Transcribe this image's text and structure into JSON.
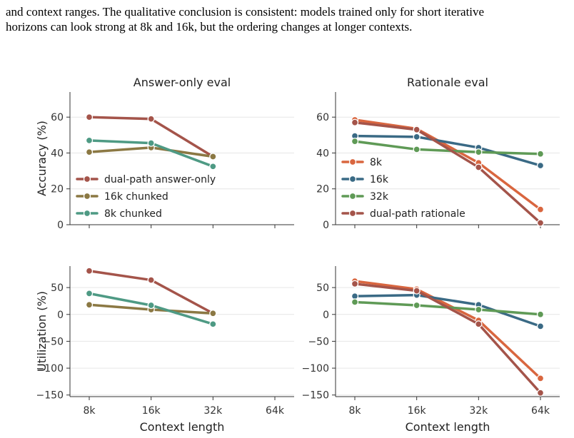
{
  "text": {
    "line1": "and context ranges. The qualitative conclusion is consistent: models trained only for short iterative",
    "line2": "horizons can look strong at 8k and 16k, but the ordering changes at longer contexts."
  },
  "colors": {
    "8k": "#d9663f",
    "16k": "#3a6a85",
    "32k": "#5f9a56",
    "dual-path rationale": "#a4544a",
    "dual-path answer-only": "#a4544a",
    "16k chunked": "#8b7843",
    "8k chunked": "#4e9a84"
  },
  "chart_data": [
    {
      "type": "line",
      "title": "Answer-only eval",
      "xlabel": "",
      "ylabel": "Accuracy (%)",
      "categories": [
        "8k",
        "16k",
        "32k",
        "64k"
      ],
      "ylim": [
        0,
        74
      ],
      "yticks": [
        0,
        20,
        40,
        60
      ],
      "grid": true,
      "legend": "lower-left",
      "series": [
        {
          "name": "dual-path answer-only",
          "values": [
            60,
            59,
            38,
            null
          ]
        },
        {
          "name": "16k chunked",
          "values": [
            40.5,
            43,
            38,
            null
          ]
        },
        {
          "name": "8k chunked",
          "values": [
            47,
            45.5,
            32.5,
            null
          ]
        }
      ]
    },
    {
      "type": "line",
      "title": "Rationale eval",
      "xlabel": "",
      "ylabel": "",
      "categories": [
        "8k",
        "16k",
        "32k",
        "64k"
      ],
      "ylim": [
        0,
        74
      ],
      "yticks": [
        0,
        20,
        40,
        60
      ],
      "grid": true,
      "legend": "lower-left",
      "series": [
        {
          "name": "8k",
          "values": [
            58.5,
            53.5,
            34.5,
            8.5
          ]
        },
        {
          "name": "16k",
          "values": [
            49.5,
            49,
            43,
            33
          ]
        },
        {
          "name": "32k",
          "values": [
            46.5,
            42,
            40.5,
            39.5
          ]
        },
        {
          "name": "dual-path rationale",
          "values": [
            57,
            53,
            32,
            1
          ]
        }
      ]
    },
    {
      "type": "line",
      "title": "",
      "xlabel": "Context length",
      "ylabel": "Utilization (%)",
      "categories": [
        "8k",
        "16k",
        "32k",
        "64k"
      ],
      "ylim": [
        -153,
        90
      ],
      "yticks": [
        -150,
        -100,
        -50,
        0,
        50
      ],
      "grid": true,
      "series": [
        {
          "name": "dual-path answer-only",
          "values": [
            81,
            64,
            2,
            null
          ]
        },
        {
          "name": "16k chunked",
          "values": [
            18,
            9,
            2,
            null
          ]
        },
        {
          "name": "8k chunked",
          "values": [
            39,
            17,
            -18,
            null
          ]
        }
      ]
    },
    {
      "type": "line",
      "title": "",
      "xlabel": "Context length",
      "ylabel": "",
      "categories": [
        "8k",
        "16k",
        "32k",
        "64k"
      ],
      "ylim": [
        -153,
        90
      ],
      "yticks": [
        -150,
        -100,
        -50,
        0,
        50
      ],
      "grid": true,
      "series": [
        {
          "name": "8k",
          "values": [
            62,
            47,
            -11,
            -119
          ]
        },
        {
          "name": "16k",
          "values": [
            34,
            36,
            18,
            -22
          ]
        },
        {
          "name": "32k",
          "values": [
            23,
            17,
            9,
            0
          ]
        },
        {
          "name": "dual-path rationale",
          "values": [
            57,
            44,
            -18,
            -146
          ]
        }
      ]
    }
  ]
}
